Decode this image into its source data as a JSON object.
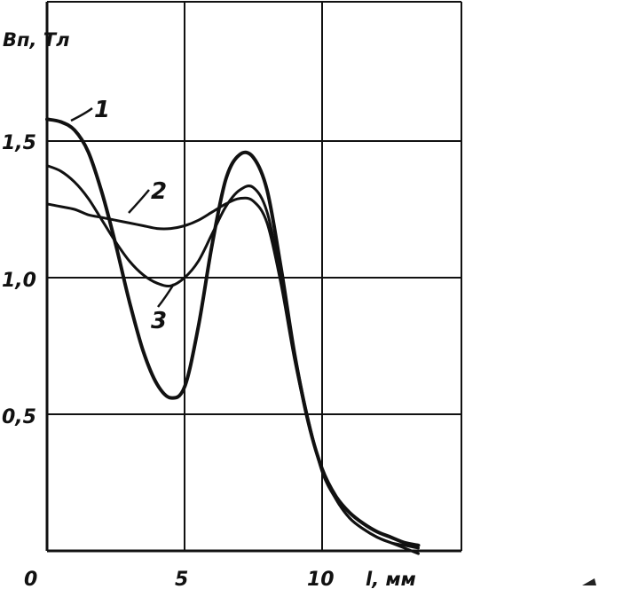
{
  "chart_data": {
    "type": "line",
    "ylabel": "Bп, Тл",
    "xlabel": "l, мм",
    "xlim": [
      0,
      15
    ],
    "ylim": [
      0,
      1.9
    ],
    "x_ticks": [
      "0",
      "5",
      "10"
    ],
    "y_ticks": [
      "0,5",
      "1,0",
      "1,5"
    ],
    "x_tick_values": [
      0,
      5,
      10
    ],
    "y_tick_values": [
      0.5,
      1.0,
      1.5
    ],
    "grid": true,
    "series": [
      {
        "name": "1",
        "x": [
          0,
          0.5,
          1,
          1.5,
          2,
          2.5,
          3,
          3.5,
          4,
          4.5,
          5,
          5.5,
          6,
          6.5,
          7,
          7.5,
          8,
          8.5,
          9,
          9.5,
          10,
          10.5,
          11,
          11.5,
          12,
          12.5,
          13,
          13.5
        ],
        "values": [
          1.58,
          1.57,
          1.54,
          1.46,
          1.31,
          1.12,
          0.91,
          0.73,
          0.61,
          0.56,
          0.6,
          0.82,
          1.12,
          1.36,
          1.45,
          1.44,
          1.32,
          1.04,
          0.72,
          0.47,
          0.3,
          0.2,
          0.14,
          0.1,
          0.07,
          0.05,
          0.03,
          0.02
        ]
      },
      {
        "name": "2",
        "x": [
          0,
          0.5,
          1,
          1.5,
          2,
          2.5,
          3,
          3.5,
          4,
          4.5,
          5,
          5.5,
          6,
          6.5,
          7,
          7.5,
          8,
          8.5,
          9,
          9.5,
          10,
          10.5,
          11,
          11.5,
          12,
          12.5,
          13,
          13.5
        ],
        "values": [
          1.27,
          1.26,
          1.25,
          1.23,
          1.22,
          1.21,
          1.2,
          1.19,
          1.18,
          1.18,
          1.19,
          1.21,
          1.24,
          1.27,
          1.29,
          1.28,
          1.2,
          0.98,
          0.7,
          0.47,
          0.3,
          0.19,
          0.12,
          0.08,
          0.05,
          0.03,
          0.02,
          0.01
        ]
      },
      {
        "name": "3",
        "x": [
          0,
          0.5,
          1,
          1.5,
          2,
          2.5,
          3,
          3.5,
          4,
          4.5,
          5,
          5.5,
          6,
          6.5,
          7,
          7.5,
          8,
          8.5,
          9,
          9.5,
          10,
          10.5,
          11,
          11.5,
          12,
          12.5,
          13,
          13.5
        ],
        "values": [
          1.41,
          1.39,
          1.35,
          1.29,
          1.21,
          1.13,
          1.06,
          1.01,
          0.98,
          0.97,
          1.0,
          1.06,
          1.16,
          1.26,
          1.32,
          1.33,
          1.24,
          1.0,
          0.72,
          0.48,
          0.29,
          0.19,
          0.12,
          0.08,
          0.05,
          0.03,
          0.01,
          -0.01
        ]
      }
    ]
  },
  "labels": {
    "x_origin": "0",
    "tick_x_5": "5",
    "tick_x_10": "10",
    "tick_y_05": "0,5",
    "tick_y_10": "1,0",
    "tick_y_15": "1,5",
    "y_title": "Bп, Тл",
    "x_title": "l, мм",
    "curve1": "1",
    "curve2": "2",
    "curve3": "3"
  },
  "colors": {
    "ink": "#111111",
    "background": "#ffffff"
  }
}
